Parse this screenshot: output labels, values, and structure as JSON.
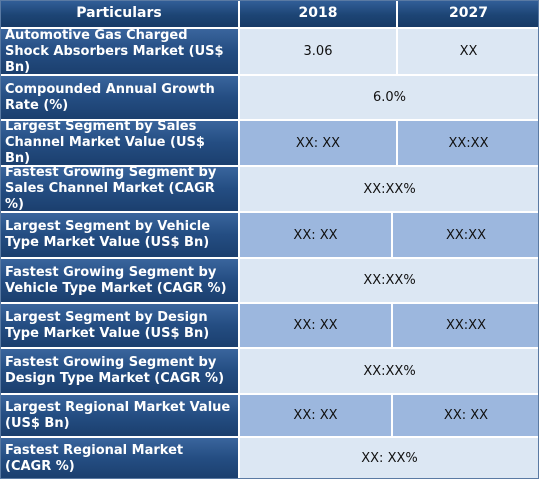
{
  "header": {
    "col_particulars": "Particulars",
    "col_2018": "2018",
    "col_2027": "2027"
  },
  "rows": [
    {
      "label": "Automotive Gas Charged Shock Absorbers Market (US$ Bn)",
      "v2018": "3.06",
      "v2027": "XX"
    },
    {
      "label": "Compounded Annual Growth Rate (%)",
      "merged": "6.0%"
    },
    {
      "label": "Largest Segment by Sales Channel Market Value (US$ Bn)",
      "v2018": "XX: XX",
      "v2027": "XX:XX"
    },
    {
      "label": "Fastest Growing Segment by Sales Channel Market (CAGR %)",
      "merged": "XX:XX%"
    },
    {
      "label": "Largest Segment by Vehicle Type Market Value (US$ Bn)",
      "v2018": "XX: XX",
      "v2027": "XX:XX"
    },
    {
      "label": "Fastest Growing Segment by Vehicle Type Market (CAGR %)",
      "merged": "XX:XX%"
    },
    {
      "label": "Largest Segment by Design Type Market Value (US$ Bn)",
      "v2018": "XX: XX",
      "v2027": "XX:XX"
    },
    {
      "label": "Fastest Growing Segment by Design Type Market (CAGR %)",
      "merged": "XX:XX%"
    },
    {
      "label": "Largest Regional Market Value (US$ Bn)",
      "v2018": "XX: XX",
      "v2027": "XX: XX"
    },
    {
      "label": "Fastest Regional Market (CAGR %)",
      "merged": "XX: XX%"
    }
  ]
}
